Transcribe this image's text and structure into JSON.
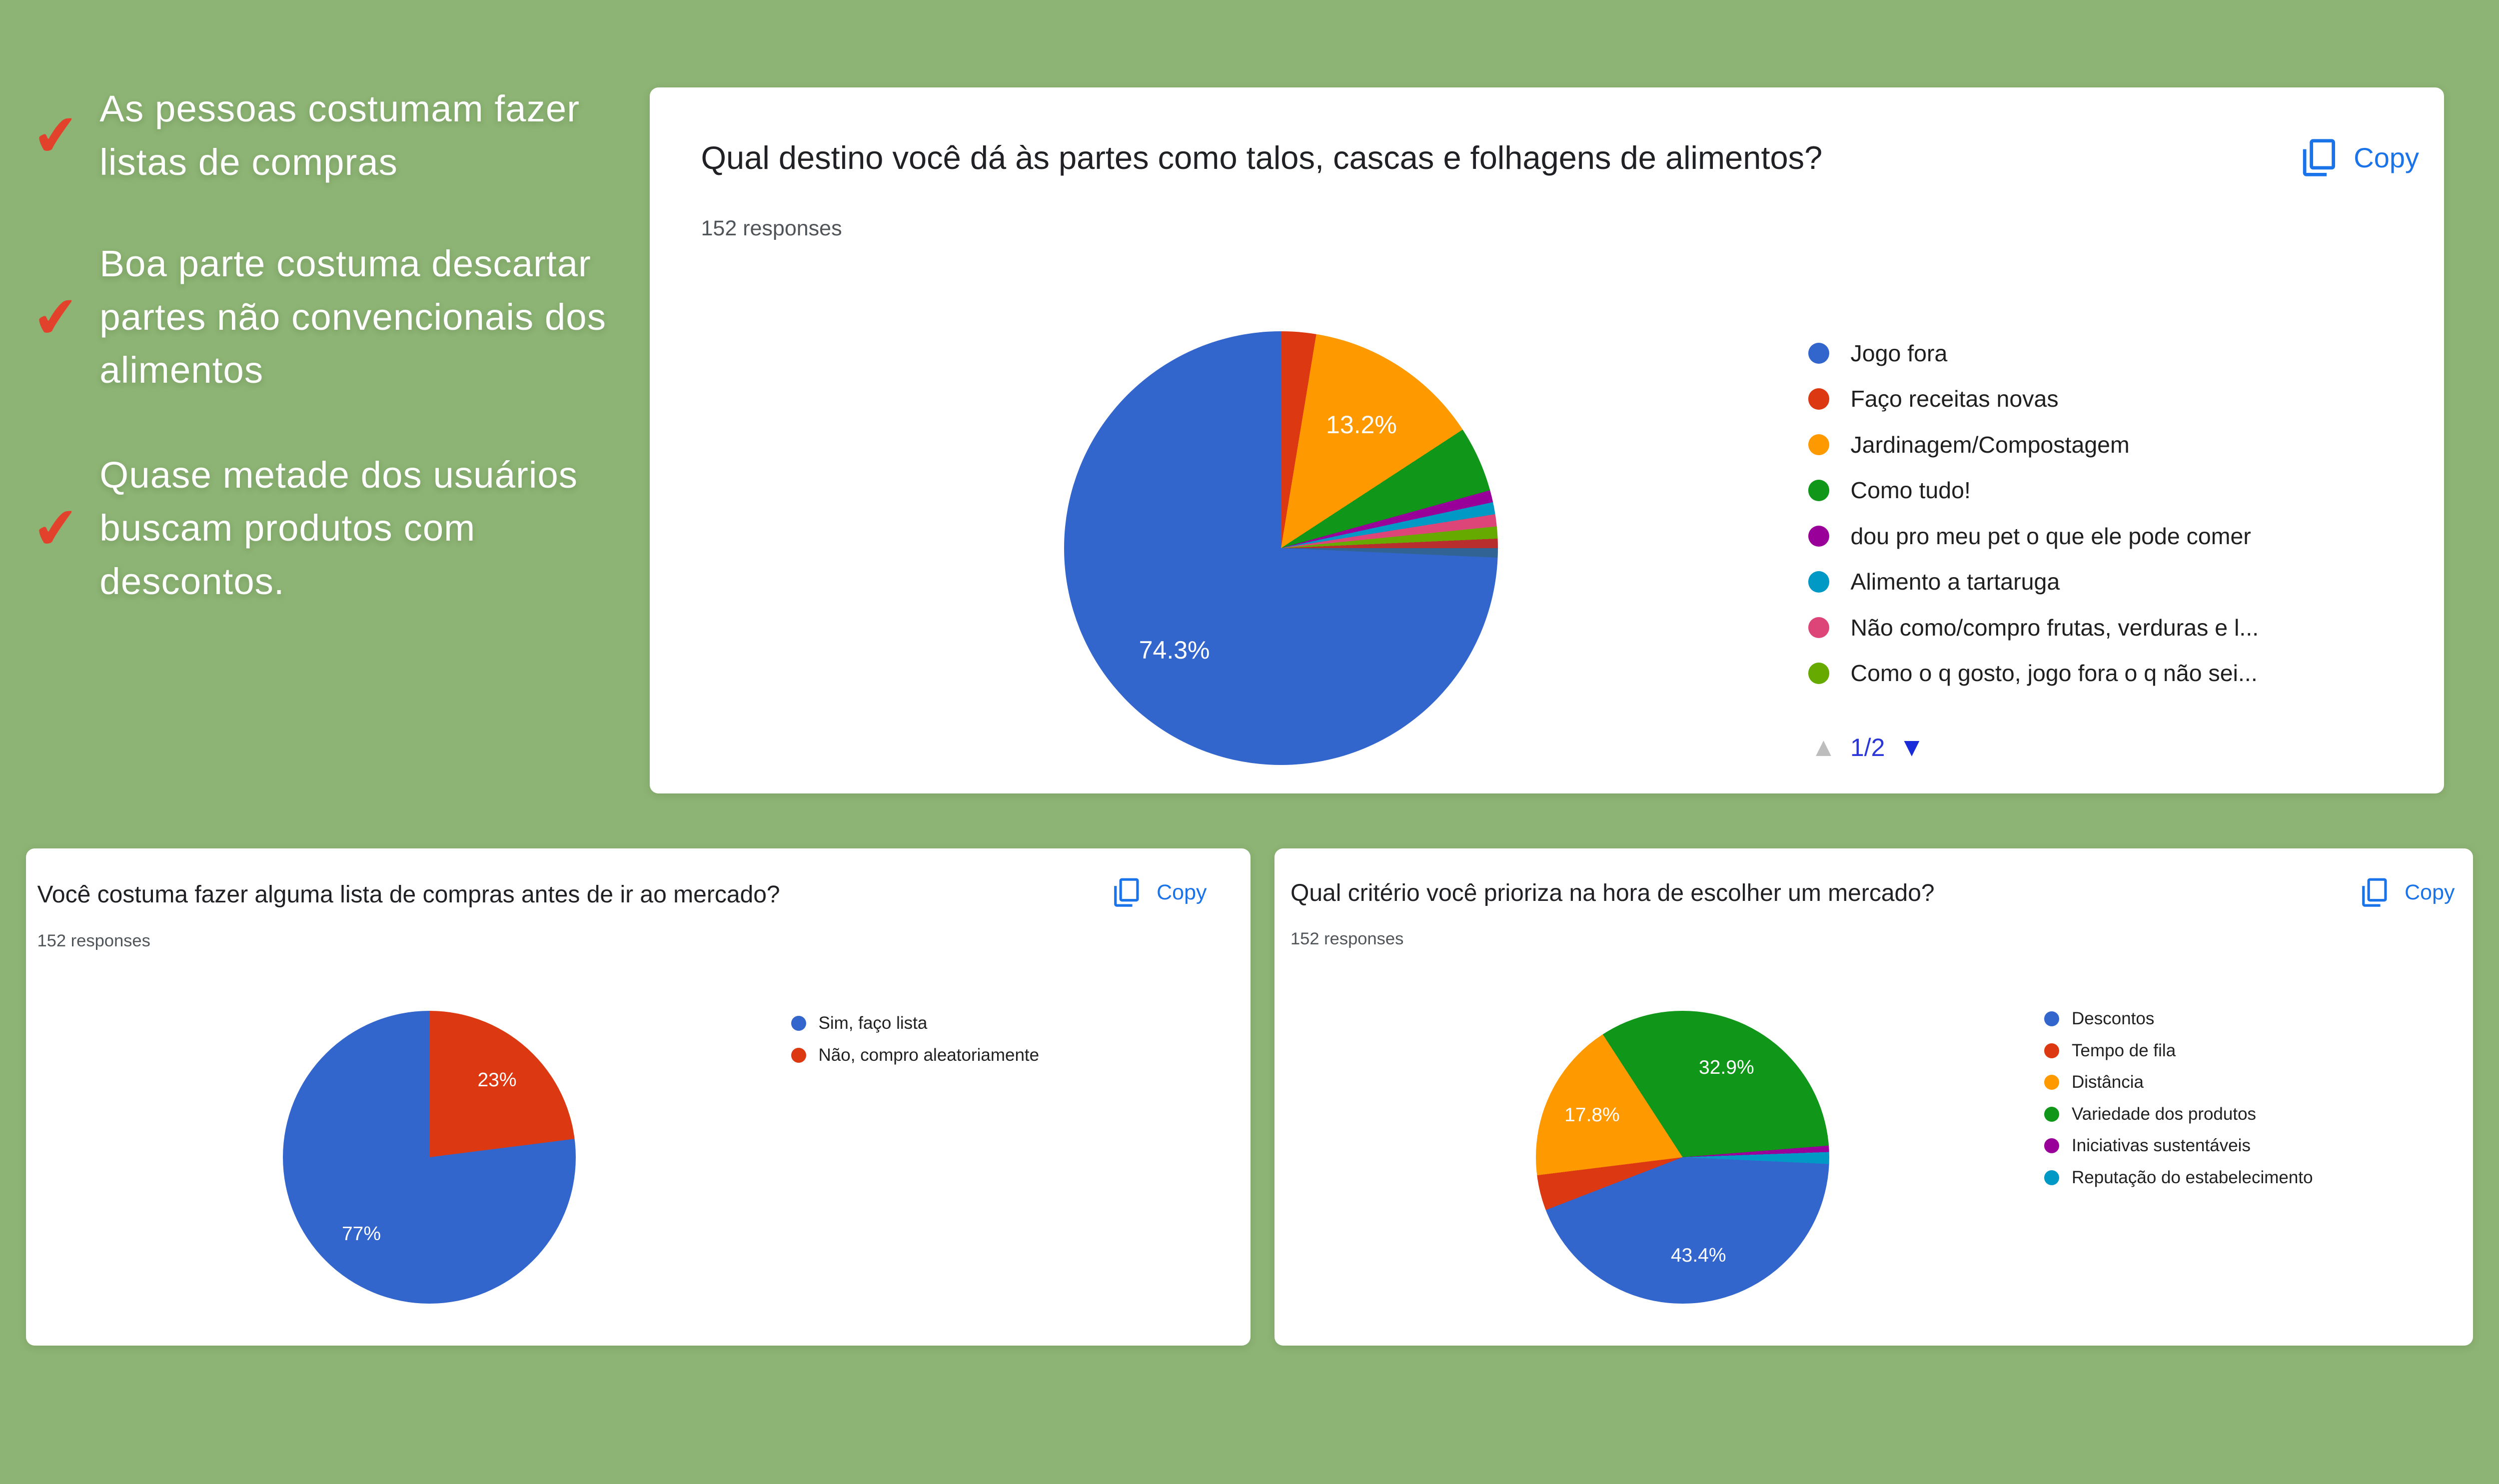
{
  "page": {
    "background_color": "#8DB474",
    "accent_blue": "#1A73E8",
    "check_color": "#E2422B"
  },
  "icons": {
    "check": "✔",
    "page_up": "▲",
    "page_down": "▼",
    "copy": "copy-pages-icon"
  },
  "ui": {
    "copy_label": "Copy",
    "legend_page": "1/2"
  },
  "annotations": [
    {
      "text": "As pessoas costumam fazer listas de compras"
    },
    {
      "text": "Boa parte costuma descartar partes não convencionais dos alimentos"
    },
    {
      "text": "Quase metade dos usuários buscam produtos com descontos."
    }
  ],
  "chart_data": [
    {
      "key": "destino",
      "type": "pie",
      "title": "Qual destino você dá às partes como talos, cascas e folhagens de alimentos?",
      "subtitle": "152 responses",
      "legend_position": "right",
      "legend": [
        {
          "label": "Jogo fora",
          "color": "#3366CC",
          "pct": 74.3
        },
        {
          "label": "Faço receitas novas",
          "color": "#DC3912",
          "pct": 2.6
        },
        {
          "label": "Jardinagem/Compostagem",
          "color": "#FF9900",
          "pct": 13.2
        },
        {
          "label": "Como tudo!",
          "color": "#109618",
          "pct": 4.9
        },
        {
          "label": "dou pro meu pet o que ele pode comer",
          "color": "#990099",
          "pct": 0.9
        },
        {
          "label": "Alimento a tartaruga",
          "color": "#0099C6",
          "pct": 0.9
        },
        {
          "label": "Não como/compro frutas, verduras e l...",
          "color": "#DD4477",
          "pct": 0.9
        },
        {
          "label": "Como o q gosto, jogo fora o q não sei...",
          "color": "#66AA00",
          "pct": 0.9
        }
      ],
      "rotation_deg": 0,
      "label_r": 0.68,
      "slices": [
        {
          "name": "Faço receitas novas",
          "pct": 2.6,
          "color": "#DC3912"
        },
        {
          "name": "Jardinagem/Compostagem",
          "pct": 13.2,
          "color": "#FF9900",
          "label": "13.2%"
        },
        {
          "name": "Como tudo!",
          "pct": 4.9,
          "color": "#109618"
        },
        {
          "name": "dou pro meu pet o que ele pode comer",
          "pct": 0.9,
          "color": "#990099"
        },
        {
          "name": "Alimento a tartaruga",
          "pct": 0.9,
          "color": "#0099C6"
        },
        {
          "name": "Não como/compro frutas, verduras e l...",
          "pct": 0.9,
          "color": "#DD4477"
        },
        {
          "name": "Como o q gosto, jogo fora o q não sei...",
          "pct": 0.9,
          "color": "#66AA00"
        },
        {
          "pct": 0.7,
          "color": "#B82E2E"
        },
        {
          "pct": 0.7,
          "color": "#316395"
        },
        {
          "name": "Jogo fora",
          "pct": 74.3,
          "color": "#3366CC",
          "label": "74.3%"
        }
      ],
      "pagination": {
        "label": "1/2"
      }
    },
    {
      "key": "lista",
      "type": "pie",
      "title": "Você costuma fazer alguma lista de compras antes de ir ao mercado?",
      "subtitle": "152 responses",
      "legend_position": "right",
      "legend": [
        {
          "label": "Sim, faço lista",
          "color": "#3366CC",
          "pct": 77
        },
        {
          "label": "Não, compro aleatoriamente",
          "color": "#DC3912",
          "pct": 23
        }
      ],
      "rotation_deg": 0,
      "label_r": 0.7,
      "slices": [
        {
          "name": "Não, compro aleatoriamente",
          "pct": 23,
          "color": "#DC3912",
          "label": "23%"
        },
        {
          "name": "Sim, faço lista",
          "pct": 77,
          "color": "#3366CC",
          "label": "77%"
        }
      ]
    },
    {
      "key": "criterio",
      "type": "pie",
      "title": "Qual critério você prioriza na hora de escolher um mercado?",
      "subtitle": "152 responses",
      "legend_position": "right",
      "legend": [
        {
          "label": "Descontos",
          "color": "#3366CC",
          "pct": 43.4
        },
        {
          "label": "Tempo de fila",
          "color": "#DC3912",
          "pct": 3.9
        },
        {
          "label": "Distância",
          "color": "#FF9900",
          "pct": 17.8
        },
        {
          "label": "Variedade dos produtos",
          "color": "#109618",
          "pct": 32.9
        },
        {
          "label": "Iniciativas sustentáveis",
          "color": "#990099",
          "pct": 0.7
        },
        {
          "label": "Reputação do estabelecimento",
          "color": "#0099C6",
          "pct": 1.3
        }
      ],
      "rotation_deg": -33,
      "label_r": 0.68,
      "slices": [
        {
          "name": "Variedade dos produtos",
          "pct": 32.9,
          "color": "#109618",
          "label": "32.9%"
        },
        {
          "name": "Iniciativas sustentáveis",
          "pct": 0.7,
          "color": "#990099"
        },
        {
          "name": "Reputação do estabelecimento",
          "pct": 1.3,
          "color": "#0099C6"
        },
        {
          "name": "Descontos",
          "pct": 43.4,
          "color": "#3366CC",
          "label": "43.4%"
        },
        {
          "name": "Tempo de fila",
          "pct": 3.9,
          "color": "#DC3912"
        },
        {
          "name": "Distância",
          "pct": 17.8,
          "color": "#FF9900",
          "label": "17.8%"
        }
      ]
    }
  ]
}
